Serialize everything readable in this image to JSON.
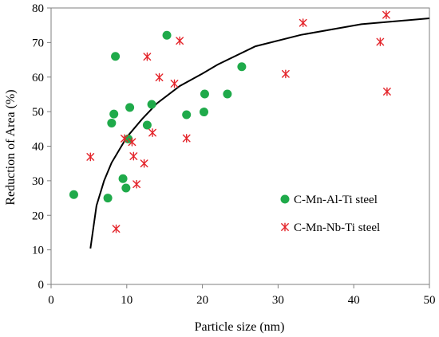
{
  "chart_data": {
    "type": "scatter",
    "title": "",
    "xlabel": "Particle size (nm)",
    "ylabel": "Reduction of Area (%)",
    "xlim": [
      0,
      50
    ],
    "ylim": [
      0,
      80
    ],
    "xticks": [
      "0",
      "10",
      "20",
      "30",
      "40",
      "50"
    ],
    "yticks": [
      "0",
      "10",
      "20",
      "30",
      "40",
      "50",
      "60",
      "70",
      "80"
    ],
    "grid": false,
    "legend_position": "bottom-right",
    "series": [
      {
        "name": "C-Mn-Al-Ti steel",
        "marker": "circle",
        "color": "#1faa4a",
        "points": [
          {
            "x": 3.0,
            "y": 26.0
          },
          {
            "x": 7.5,
            "y": 25.0
          },
          {
            "x": 8.0,
            "y": 46.7
          },
          {
            "x": 8.3,
            "y": 49.3
          },
          {
            "x": 8.5,
            "y": 66.0
          },
          {
            "x": 9.5,
            "y": 30.6
          },
          {
            "x": 9.9,
            "y": 27.9
          },
          {
            "x": 10.2,
            "y": 42.1
          },
          {
            "x": 10.4,
            "y": 51.2
          },
          {
            "x": 12.7,
            "y": 46.1
          },
          {
            "x": 13.3,
            "y": 52.1
          },
          {
            "x": 15.3,
            "y": 72.1
          },
          {
            "x": 17.9,
            "y": 49.1
          },
          {
            "x": 20.2,
            "y": 49.9
          },
          {
            "x": 20.3,
            "y": 55.1
          },
          {
            "x": 23.3,
            "y": 55.1
          },
          {
            "x": 25.2,
            "y": 63.0
          }
        ]
      },
      {
        "name": "C-Mn-Nb-Ti steel",
        "marker": "asterisk",
        "color": "#e4252b",
        "points": [
          {
            "x": 5.2,
            "y": 36.9
          },
          {
            "x": 8.6,
            "y": 16.1
          },
          {
            "x": 9.7,
            "y": 42.2
          },
          {
            "x": 10.7,
            "y": 41.2
          },
          {
            "x": 10.9,
            "y": 37.1
          },
          {
            "x": 11.3,
            "y": 29.0
          },
          {
            "x": 12.3,
            "y": 35.0
          },
          {
            "x": 12.7,
            "y": 65.9
          },
          {
            "x": 13.4,
            "y": 43.9
          },
          {
            "x": 14.3,
            "y": 59.9
          },
          {
            "x": 16.3,
            "y": 58.1
          },
          {
            "x": 17.0,
            "y": 70.5
          },
          {
            "x": 17.9,
            "y": 42.3
          },
          {
            "x": 31.0,
            "y": 60.9
          },
          {
            "x": 33.3,
            "y": 75.7
          },
          {
            "x": 43.5,
            "y": 70.2
          },
          {
            "x": 44.3,
            "y": 78.0
          },
          {
            "x": 44.4,
            "y": 55.8
          }
        ]
      }
    ],
    "trend_line": {
      "color": "#000000",
      "points": [
        {
          "x": 5.2,
          "y": 10.4
        },
        {
          "x": 6.0,
          "y": 22.8
        },
        {
          "x": 7.0,
          "y": 30.0
        },
        {
          "x": 8.0,
          "y": 35.2
        },
        {
          "x": 10.0,
          "y": 42.6
        },
        {
          "x": 12.0,
          "y": 47.8
        },
        {
          "x": 14.0,
          "y": 52.4
        },
        {
          "x": 17.0,
          "y": 57.4
        },
        {
          "x": 20.0,
          "y": 61.0
        },
        {
          "x": 22.0,
          "y": 63.6
        },
        {
          "x": 27.0,
          "y": 68.9
        },
        {
          "x": 33.0,
          "y": 72.2
        },
        {
          "x": 41.0,
          "y": 75.3
        },
        {
          "x": 50.0,
          "y": 77.0
        }
      ]
    }
  }
}
